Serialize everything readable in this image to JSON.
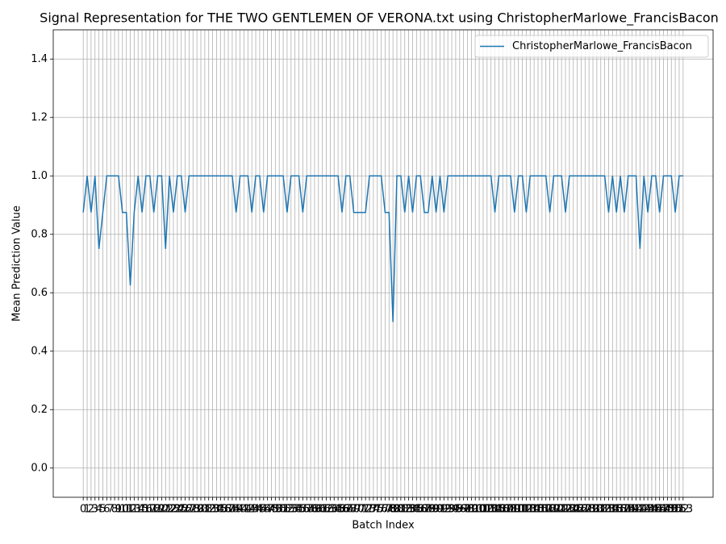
{
  "chart_data": {
    "type": "line",
    "title": "Signal Representation for THE TWO GENTLEMEN OF VERONA.txt using ChristopherMarlowe_FrancisBacon",
    "x_label": "Batch Index",
    "y_label": "Mean Prediction Value",
    "x": [
      0,
      1,
      2,
      3,
      4,
      5,
      6,
      7,
      8,
      9,
      10,
      11,
      12,
      13,
      14,
      15,
      16,
      17,
      18,
      19,
      20,
      21,
      22,
      23,
      24,
      25,
      26,
      27,
      28,
      29,
      30,
      31,
      32,
      33,
      34,
      35,
      36,
      37,
      38,
      39,
      40,
      41,
      42,
      43,
      44,
      45,
      46,
      47,
      48,
      49,
      50,
      51,
      52,
      53,
      54,
      55,
      56,
      57,
      58,
      59,
      60,
      61,
      62,
      63,
      64,
      65,
      66,
      67,
      68,
      69,
      70,
      71,
      72,
      73,
      74,
      75,
      76,
      77,
      78,
      79,
      80,
      81,
      82,
      83,
      84,
      85,
      86,
      87,
      88,
      89,
      90,
      91,
      92,
      93,
      94,
      95,
      96,
      97,
      98,
      99,
      100,
      101,
      102,
      103,
      104,
      105,
      106,
      107,
      108,
      109,
      110,
      111,
      112,
      113,
      114,
      115,
      116,
      117,
      118,
      119,
      120,
      121,
      122,
      123,
      124,
      125,
      126,
      127,
      128,
      129,
      130,
      131,
      132,
      133,
      134,
      135,
      136,
      137,
      138,
      139,
      140,
      141,
      142,
      143,
      144,
      145,
      146,
      147,
      148,
      149,
      150,
      151,
      152,
      153
    ],
    "series": [
      {
        "name": "ChristopherMarlowe_FrancisBacon",
        "color": "#1f77b4",
        "values": [
          0.875,
          1,
          0.875,
          1,
          0.75,
          0.875,
          1,
          1,
          1,
          1,
          0.875,
          0.875,
          0.625,
          0.875,
          1,
          0.875,
          1,
          1,
          0.875,
          1,
          1,
          0.75,
          1,
          0.875,
          1,
          1,
          0.875,
          1,
          1,
          1,
          1,
          1,
          1,
          1,
          1,
          1,
          1,
          1,
          1,
          0.875,
          1,
          1,
          1,
          0.875,
          1,
          1,
          0.875,
          1,
          1,
          1,
          1,
          1,
          0.875,
          1,
          1,
          1,
          0.875,
          1,
          1,
          1,
          1,
          1,
          1,
          1,
          1,
          1,
          0.875,
          1,
          1,
          0.875,
          0.875,
          0.875,
          0.875,
          1,
          1,
          1,
          1,
          0.875,
          0.875,
          0.5,
          1,
          1,
          0.875,
          1,
          0.875,
          1,
          1,
          0.875,
          0.875,
          1,
          0.875,
          1,
          0.875,
          1,
          1,
          1,
          1,
          1,
          1,
          1,
          1,
          1,
          1,
          1,
          1,
          0.875,
          1,
          1,
          1,
          1,
          0.875,
          1,
          1,
          0.875,
          1,
          1,
          1,
          1,
          1,
          0.875,
          1,
          1,
          1,
          0.875,
          1,
          1,
          1,
          1,
          1,
          1,
          1,
          1,
          1,
          1,
          0.875,
          1,
          0.875,
          1,
          0.875,
          1,
          1,
          1,
          0.75,
          1,
          0.875,
          1,
          1,
          0.875,
          1,
          1,
          1,
          0.875,
          1,
          1
        ]
      }
    ],
    "xlim": [
      -7.65,
      160.65
    ],
    "xticks": [
      0,
      1,
      2,
      3,
      4,
      5,
      6,
      7,
      8,
      9,
      10,
      11,
      12,
      13,
      14,
      15,
      16,
      17,
      18,
      19,
      20,
      21,
      22,
      23,
      24,
      25,
      26,
      27,
      28,
      29,
      30,
      31,
      32,
      33,
      34,
      35,
      36,
      37,
      38,
      39,
      40,
      41,
      42,
      43,
      44,
      45,
      46,
      47,
      48,
      49,
      50,
      51,
      52,
      53,
      54,
      55,
      56,
      57,
      58,
      59,
      60,
      61,
      62,
      63,
      64,
      65,
      66,
      67,
      68,
      69,
      70,
      71,
      72,
      73,
      74,
      75,
      76,
      77,
      78,
      79,
      80,
      81,
      82,
      83,
      84,
      85,
      86,
      87,
      88,
      89,
      90,
      91,
      92,
      93,
      94,
      95,
      96,
      97,
      98,
      99,
      100,
      101,
      102,
      103,
      104,
      105,
      106,
      107,
      108,
      109,
      110,
      111,
      112,
      113,
      114,
      115,
      116,
      117,
      118,
      119,
      120,
      121,
      122,
      123,
      124,
      125,
      126,
      127,
      128,
      129,
      130,
      131,
      132,
      133,
      134,
      135,
      136,
      137,
      138,
      139,
      140,
      141,
      142,
      143,
      144,
      145,
      146,
      147,
      148,
      149,
      150,
      151,
      152,
      153
    ],
    "ylim": [
      -0.1,
      1.5
    ],
    "yticks": [
      {
        "value": 0,
        "label": "0.0"
      },
      0.2,
      0.4,
      0.6,
      0.8,
      {
        "value": 1,
        "label": "1.0"
      },
      1.2,
      1.4
    ],
    "grid": true,
    "legend": "upper right"
  }
}
